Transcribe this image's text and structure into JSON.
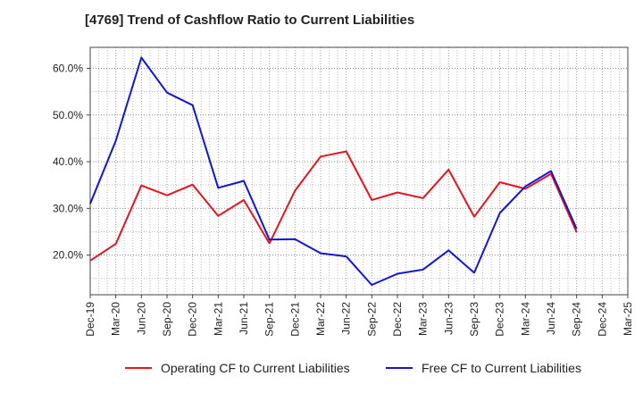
{
  "chart_data": {
    "type": "line",
    "title": "[4769]  Trend of Cashflow Ratio to Current Liabilities",
    "xlabel": "",
    "ylabel": "",
    "categories": [
      "Dec-19",
      "Mar-20",
      "Jun-20",
      "Sep-20",
      "Dec-20",
      "Mar-21",
      "Jun-21",
      "Sep-21",
      "Dec-21",
      "Mar-22",
      "Jun-22",
      "Sep-22",
      "Dec-22",
      "Mar-23",
      "Jun-23",
      "Sep-23",
      "Dec-23",
      "Mar-24",
      "Jun-24",
      "Sep-24",
      "Dec-24",
      "Mar-25"
    ],
    "ylim": [
      11.5,
      64.5
    ],
    "yticks": [
      20,
      30,
      40,
      50,
      60
    ],
    "ytick_labels": [
      "20.0%",
      "30.0%",
      "40.0%",
      "50.0%",
      "60.0%"
    ],
    "grid": true,
    "legend_position": "bottom",
    "series": [
      {
        "name": "Operating CF to Current Liabilities",
        "color": "#e8141c",
        "values": [
          18.8,
          22.4,
          34.9,
          32.8,
          35.1,
          28.4,
          31.8,
          22.5,
          33.8,
          41.1,
          42.2,
          31.8,
          33.4,
          32.2,
          38.3,
          28.2,
          35.6,
          34.2,
          37.4,
          24.9,
          null,
          null
        ]
      },
      {
        "name": "Free CF to Current Liabilities",
        "color": "#1414d8",
        "values": [
          31.0,
          44.5,
          62.3,
          54.8,
          52.1,
          34.4,
          35.9,
          23.3,
          23.4,
          20.4,
          19.7,
          13.6,
          16.0,
          16.9,
          21.0,
          16.2,
          29.0,
          34.7,
          38.0,
          25.6,
          null,
          null
        ]
      }
    ]
  }
}
